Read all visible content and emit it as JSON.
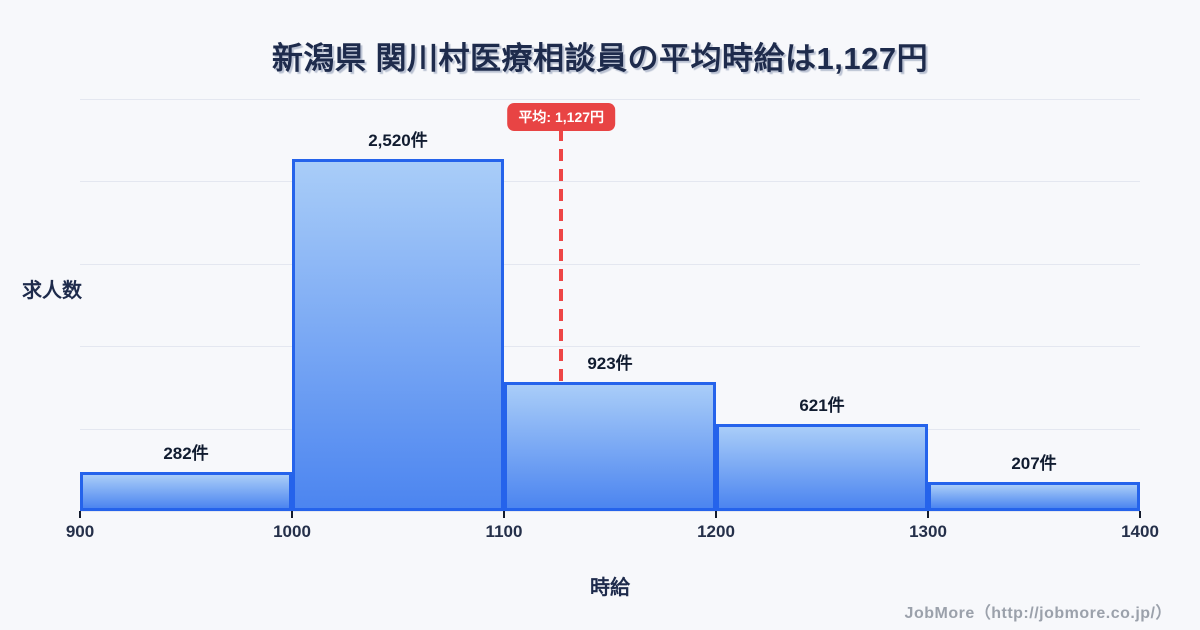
{
  "title": "新潟県 関川村医療相談員の平均時給は1,127円",
  "footer": "JobMore（http://jobmore.co.jp/）",
  "chart_data": {
    "type": "bar",
    "subtype": "histogram",
    "title": "新潟県 関川村医療相談員の平均時給は1,127円",
    "xlabel": "時給",
    "ylabel": "求人数",
    "categories": [
      "900-1000",
      "1000-1100",
      "1100-1200",
      "1200-1300",
      "1300-1400"
    ],
    "values": [
      282,
      2520,
      923,
      621,
      207
    ],
    "bar_labels": [
      "282件",
      "2,520件",
      "923件",
      "621件",
      "207件"
    ],
    "x_ticks": [
      "900",
      "1000",
      "1100",
      "1200",
      "1300",
      "1400"
    ],
    "xlim": [
      900,
      1400
    ],
    "ylim": [
      0,
      2950
    ],
    "grid": true,
    "legend": false,
    "average": {
      "value": 1127,
      "label": "平均: 1,127円"
    },
    "colors": {
      "bar_border": "#2563eb",
      "bar_fill_top": "#a9cdf8",
      "bar_fill_bottom": "#4c85f0",
      "average_line": "#ee4646",
      "average_badge": "#e84444",
      "title_text": "#1e2b4c",
      "gridline": "#e4e7f0",
      "background": "#f7f8fb"
    }
  }
}
